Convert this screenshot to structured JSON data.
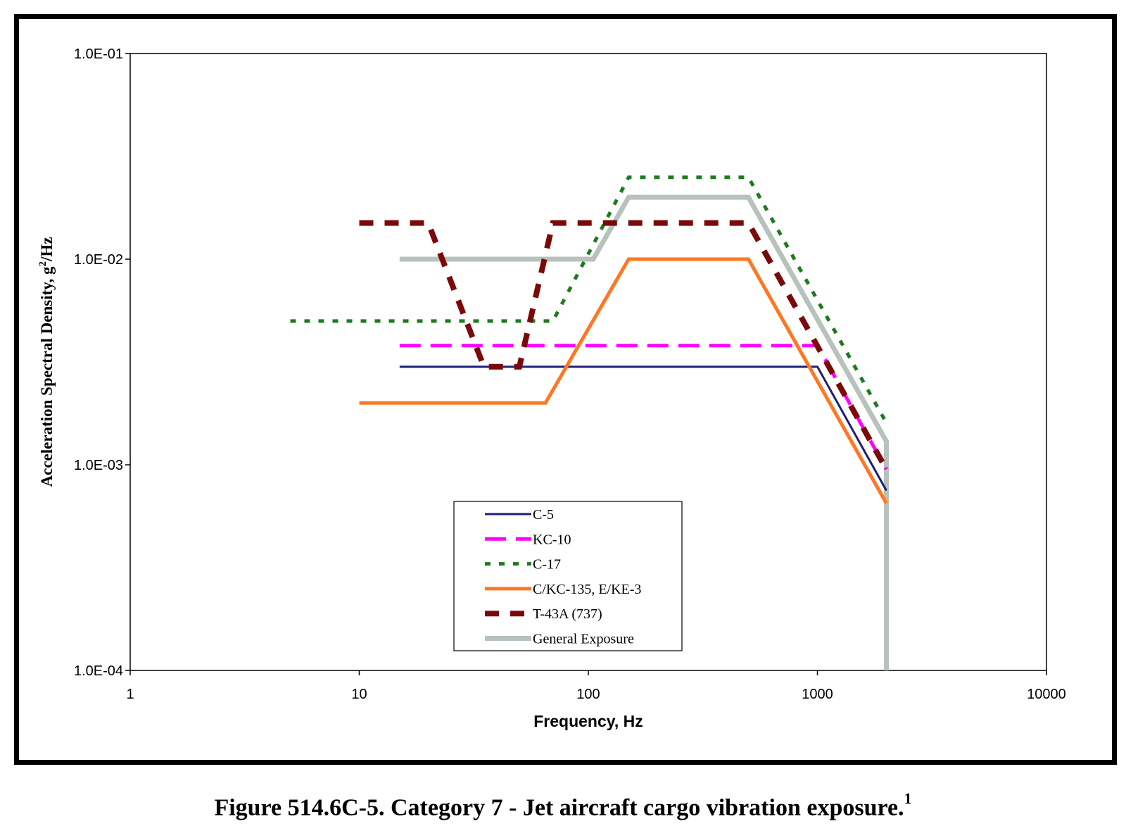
{
  "caption": {
    "text": "Figure 514.6C-5.  Category 7 - Jet aircraft cargo vibration exposure.",
    "footnote": "1"
  },
  "chart_data": {
    "type": "line",
    "xlabel": "Frequency, Hz",
    "ylabel_main": "Acceleration Spectral Density, g",
    "ylabel_sup": "2",
    "ylabel_tail": "/Hz",
    "x_scale": "log",
    "y_scale": "log",
    "xlim": [
      1,
      10000
    ],
    "ylim": [
      0.0001,
      0.1
    ],
    "x_ticks": [
      1,
      10,
      100,
      1000,
      10000
    ],
    "x_tick_labels": [
      "1",
      "10",
      "100",
      "1000",
      "10000"
    ],
    "y_ticks": [
      0.0001,
      0.001,
      0.01,
      0.1
    ],
    "y_tick_labels": [
      "1.0E-04",
      "1.0E-03",
      "1.0E-02",
      "1.0E-01"
    ],
    "grid": false,
    "legend_position": "bottom-center",
    "series": [
      {
        "name": "General Exposure",
        "color": "#B8C2BC",
        "dash": "none",
        "x": [
          15,
          105,
          150,
          500,
          2000,
          2000
        ],
        "y": [
          0.01,
          0.01,
          0.02,
          0.02,
          0.0013,
          0.0001
        ]
      },
      {
        "name": "C-5",
        "color": "#1E1E78",
        "dash": "none",
        "x": [
          15,
          1000,
          2000
        ],
        "y": [
          0.003,
          0.003,
          0.00075
        ]
      },
      {
        "name": "KC-10",
        "color": "#FF00FF",
        "dash": "long",
        "x": [
          15,
          1000,
          2000
        ],
        "y": [
          0.0038,
          0.0038,
          0.00095
        ]
      },
      {
        "name": "C-17",
        "color": "#1E7A1E",
        "dash": "dot",
        "x": [
          5,
          70,
          150,
          500,
          2000
        ],
        "y": [
          0.005,
          0.005,
          0.025,
          0.025,
          0.0016
        ]
      },
      {
        "name": "C/KC-135, E/KE-3",
        "color": "#FF7722",
        "dash": "none",
        "x": [
          10,
          65,
          150,
          500,
          2000
        ],
        "y": [
          0.002,
          0.002,
          0.01,
          0.01,
          0.00065
        ]
      },
      {
        "name": "T-43A (737)",
        "color": "#7A0A0A",
        "dash": "square",
        "x": [
          10,
          20,
          35,
          50,
          70,
          500,
          2000
        ],
        "y": [
          0.015,
          0.015,
          0.003,
          0.003,
          0.015,
          0.015,
          0.00095
        ]
      }
    ],
    "legend_order": [
      "C-5",
      "KC-10",
      "C-17",
      "C/KC-135, E/KE-3",
      "T-43A (737)",
      "General Exposure"
    ]
  }
}
